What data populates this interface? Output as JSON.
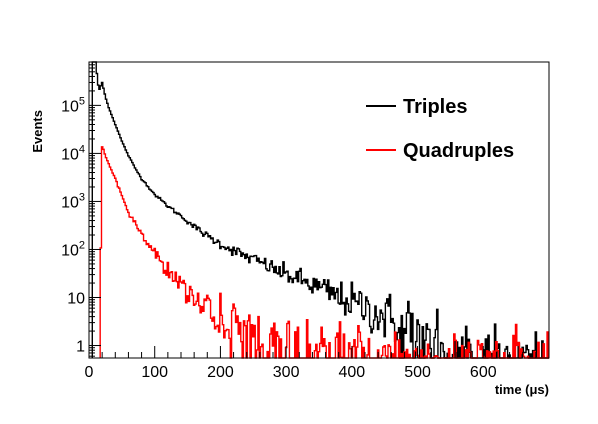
{
  "chart_data": {
    "type": "line",
    "style": "step-histogram",
    "title": "",
    "xlabel": "time (μs)",
    "ylabel": "Events",
    "xlim": [
      0,
      700
    ],
    "ylim": [
      0.55,
      800000
    ],
    "yscale": "log",
    "grid": false,
    "legend_position": "top-right",
    "x_ticks": [
      0,
      100,
      200,
      300,
      400,
      500,
      600
    ],
    "x_tick_labels": [
      "0",
      "100",
      "200",
      "300",
      "400",
      "500",
      "600"
    ],
    "y_ticks": [
      1,
      10,
      100,
      1000,
      10000,
      100000
    ],
    "y_tick_labels": [
      "1",
      "10",
      "10^2",
      "10^3",
      "10^4",
      "10^5"
    ],
    "series": [
      {
        "name": "Triples",
        "color": "#000000",
        "x": [
          5,
          10,
          15,
          20,
          25,
          30,
          40,
          50,
          60,
          70,
          80,
          100,
          120,
          140,
          160,
          180,
          200,
          220,
          240,
          260,
          280,
          300,
          320,
          340,
          360,
          380,
          400,
          420,
          440,
          460,
          480,
          500,
          520,
          540,
          560,
          580,
          600,
          620,
          640,
          660,
          680,
          700
        ],
        "values": [
          800000,
          800000,
          200000,
          300000,
          150000,
          90000,
          40000,
          18000,
          9000,
          5000,
          3000,
          1400,
          800,
          500,
          300,
          190,
          130,
          95,
          70,
          55,
          40,
          30,
          24,
          18,
          14,
          10,
          8,
          6,
          4.5,
          3.5,
          2.7,
          2.1,
          1.7,
          1.3,
          1.05,
          0.9,
          0.8,
          0.7,
          0.65,
          0.6,
          0.58,
          0.56
        ]
      },
      {
        "name": "Quadruples",
        "color": "#ff0000",
        "x": [
          17,
          19,
          22,
          25,
          30,
          40,
          50,
          60,
          70,
          80,
          100,
          120,
          140,
          160,
          180,
          200,
          220,
          240,
          260,
          280,
          300,
          320,
          340,
          360,
          380,
          400,
          420,
          440,
          460,
          480,
          500,
          520,
          540,
          560,
          580,
          600,
          620,
          640,
          660,
          680,
          700
        ],
        "values": [
          0.55,
          15000,
          12000,
          9000,
          6000,
          3000,
          1300,
          600,
          350,
          200,
          80,
          40,
          20,
          10,
          6,
          3.5,
          2.5,
          1.8,
          1.5,
          1.3,
          1.2,
          1.1,
          1.0,
          0.95,
          0.9,
          0.85,
          0.8,
          0.75,
          0.72,
          0.68,
          0.65,
          0.62,
          0.6,
          0.58,
          0.57,
          0.56,
          0.56,
          0.56,
          0.56,
          0.56,
          0.56
        ]
      }
    ]
  }
}
